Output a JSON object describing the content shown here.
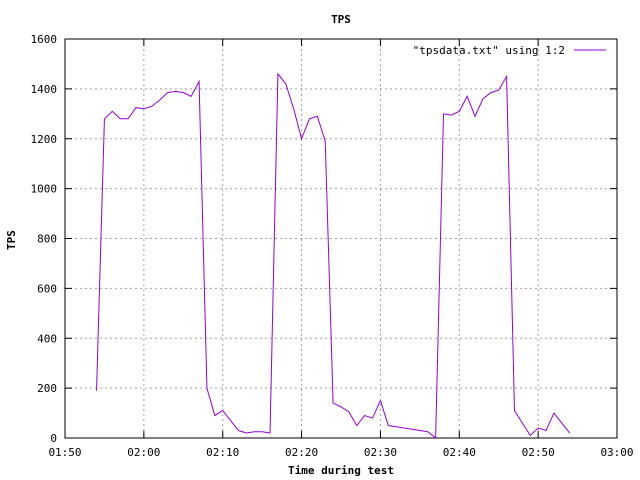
{
  "chart_data": {
    "type": "line",
    "title": "TPS",
    "xlabel": "Time during test",
    "ylabel": "TPS",
    "xlim": [
      "01:50",
      "03:00"
    ],
    "ylim": [
      0,
      1600
    ],
    "grid": true,
    "legend_position": "top-right",
    "x_ticks": [
      "01:50",
      "02:00",
      "02:10",
      "02:20",
      "02:30",
      "02:40",
      "02:50",
      "03:00"
    ],
    "y_ticks": [
      0,
      200,
      400,
      600,
      800,
      1000,
      1200,
      1400,
      1600
    ],
    "series": [
      {
        "name": "\"tpsdata.txt\" using 1:2",
        "color": "#9400d3",
        "x": [
          "01:54",
          "01:55",
          "01:56",
          "01:57",
          "01:58",
          "01:59",
          "02:00",
          "02:01",
          "02:02",
          "02:03",
          "02:04",
          "02:05",
          "02:06",
          "02:07",
          "02:08",
          "02:09",
          "02:10",
          "02:11",
          "02:12",
          "02:13",
          "02:14",
          "02:15",
          "02:16",
          "02:17",
          "02:18",
          "02:19",
          "02:20",
          "02:21",
          "02:22",
          "02:23",
          "02:24",
          "02:25",
          "02:26",
          "02:27",
          "02:28",
          "02:29",
          "02:30",
          "02:31",
          "02:32",
          "02:33",
          "02:34",
          "02:35",
          "02:36",
          "02:37",
          "02:38",
          "02:39",
          "02:40",
          "02:41",
          "02:42",
          "02:43",
          "02:44",
          "02:45",
          "02:46",
          "02:47",
          "02:48",
          "02:49",
          "02:50",
          "02:51",
          "02:52",
          "02:53",
          "02:54"
        ],
        "values": [
          190,
          1280,
          1310,
          1280,
          1280,
          1325,
          1320,
          1330,
          1355,
          1385,
          1390,
          1385,
          1370,
          1430,
          200,
          90,
          110,
          70,
          30,
          20,
          25,
          25,
          20,
          1460,
          1420,
          1320,
          1200,
          1280,
          1290,
          1190,
          140,
          125,
          105,
          50,
          90,
          80,
          150,
          50,
          45,
          40,
          35,
          30,
          25,
          0,
          1300,
          1295,
          1310,
          1370,
          1290,
          1360,
          1385,
          1395,
          1450,
          110,
          60,
          10,
          40,
          30,
          100,
          60,
          20
        ]
      }
    ]
  }
}
